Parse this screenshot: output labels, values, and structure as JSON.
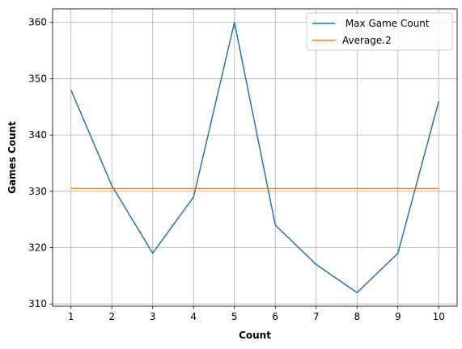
{
  "chart_data": {
    "type": "line",
    "title": "",
    "xlabel": "Count",
    "ylabel": "Games Count",
    "x": [
      1,
      2,
      3,
      4,
      5,
      6,
      7,
      8,
      9,
      10
    ],
    "xlim": [
      0.55,
      10.45
    ],
    "ylim": [
      309.6,
      362.4
    ],
    "xticks": [
      1,
      2,
      3,
      4,
      5,
      6,
      7,
      8,
      9,
      10
    ],
    "yticks": [
      310,
      320,
      330,
      340,
      350,
      360
    ],
    "grid": true,
    "legend_position": "top-right",
    "series": [
      {
        "name": " Max Game Count",
        "color": "#1f77b4",
        "values": [
          348,
          331,
          319,
          329,
          360,
          324,
          317,
          312,
          319,
          346
        ]
      },
      {
        "name": "Average.2",
        "color": "#ff7f0e",
        "values": [
          330.5,
          330.5,
          330.5,
          330.5,
          330.5,
          330.5,
          330.5,
          330.5,
          330.5,
          330.5
        ]
      }
    ]
  }
}
